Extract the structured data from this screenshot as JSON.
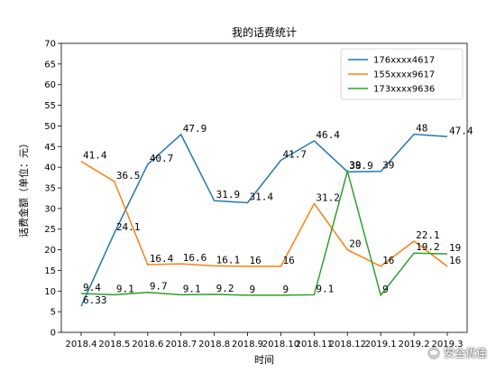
{
  "chart_data": {
    "type": "line",
    "title": "我的话费统计",
    "xlabel": "时间",
    "ylabel": "话费金额（单位：元）",
    "ylim": [
      0,
      70
    ],
    "yticks": [
      0,
      5,
      10,
      15,
      20,
      25,
      30,
      35,
      40,
      45,
      50,
      55,
      60,
      65,
      70
    ],
    "categories": [
      "2018.4",
      "2018.5",
      "2018.6",
      "2018.7",
      "2018.8",
      "2018.9",
      "2018.10",
      "2018.11",
      "2018.12",
      "2019.1",
      "2019.2",
      "2019.3"
    ],
    "tick_labels": [
      "2018.4",
      "2018.5",
      "2018.6",
      "2018.7",
      "2018.8",
      "2018.9",
      "2018.10",
      "2018.11",
      "2018.12",
      "2019.1",
      "2019.2",
      "2019.3"
    ],
    "grid": false,
    "legend_position": "top-right",
    "series": [
      {
        "name": "176xxxx4617",
        "color": "#1f77b4",
        "values": [
          6.33,
          24.1,
          40.7,
          47.9,
          31.9,
          31.4,
          41.7,
          46.4,
          38.9,
          39,
          48,
          47.4
        ]
      },
      {
        "name": "155xxxx9617",
        "color": "#ff7f0e",
        "values": [
          41.4,
          36.5,
          16.4,
          16.6,
          16.1,
          16,
          16,
          31.2,
          20,
          16,
          22.1,
          16
        ]
      },
      {
        "name": "173xxxx9636",
        "color": "#2ca02c",
        "values": [
          9.4,
          9.1,
          9.7,
          9.1,
          9.2,
          9,
          9,
          9.1,
          39,
          9,
          19.2,
          19
        ]
      }
    ],
    "data_labels": [
      {
        "series": 0,
        "values": [
          "6.33",
          "24.1",
          "40.7",
          "47.9",
          "31.9",
          "31.4",
          "41.7",
          "46.4",
          "38.9",
          "39",
          "48",
          "47.4"
        ]
      },
      {
        "series": 1,
        "values": [
          "41.4",
          "36.5",
          "16.4",
          "16.6",
          "16.1",
          "16",
          "16",
          "31.2",
          "20",
          "16",
          "22.1",
          "16"
        ]
      },
      {
        "series": 2,
        "values": [
          "9.4",
          "9.1",
          "9.7",
          "9.1",
          "9.2",
          "9",
          "9",
          "9.1",
          "39",
          "9",
          "19.2",
          "19"
        ]
      }
    ]
  },
  "watermark": {
    "icon": "wechat-icon",
    "text": "安全优佳"
  }
}
